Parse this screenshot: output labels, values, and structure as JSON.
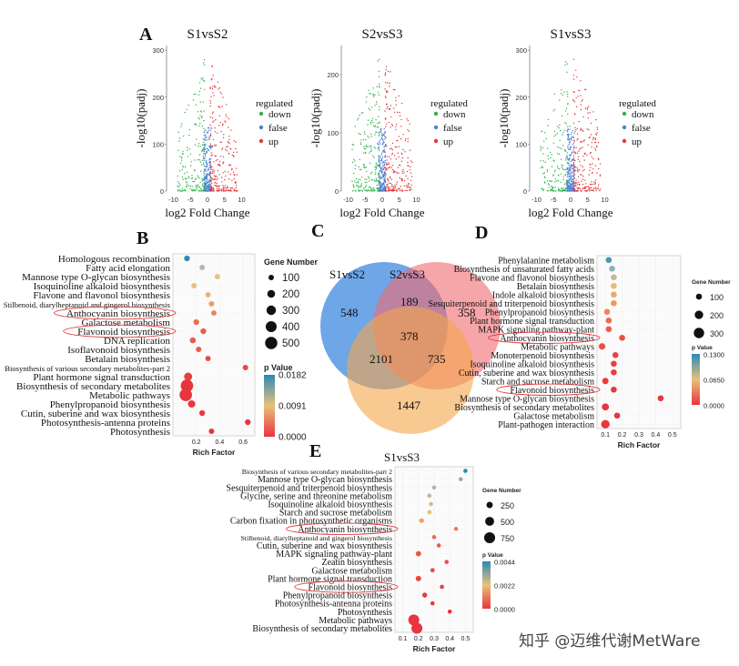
{
  "colors": {
    "down": "#2db34a",
    "false": "#4a7fd6",
    "up": "#e0393a",
    "venn_s1s2": "#4a90e2",
    "venn_s2s3": "#f06a6f",
    "venn_s1s3": "#f5a54a",
    "pval_low": "#e8353f",
    "pval_high": "#2b88b8"
  },
  "panel_a": {
    "letter": "A",
    "legend_title": "regulated",
    "legend_items": [
      "down",
      "false",
      "up"
    ],
    "xlabel": "log2 Fold Change",
    "ylabel": "-log10(padj)",
    "x_ticks": [
      "-10",
      "-5",
      "0",
      "5",
      "10"
    ],
    "plots": [
      {
        "title": "S1vsS2",
        "y_ticks": [
          "0",
          "100",
          "200",
          "300"
        ],
        "ymax": 310
      },
      {
        "title": "S2vsS3",
        "y_ticks": [
          "0",
          "100",
          "200"
        ],
        "ymax": 250
      },
      {
        "title": "S1vsS3",
        "y_ticks": [
          "0",
          "100",
          "200",
          "300"
        ],
        "ymax": 310
      }
    ]
  },
  "panel_c": {
    "letter": "C",
    "sets": [
      "S1vsS2",
      "S2vsS3",
      "S1vsS3"
    ],
    "regions": {
      "only_s1s2": "548",
      "s1s2_s2s3": "189",
      "only_s2s3": "358",
      "all": "378",
      "s1s2_s1s3": "2101",
      "s2s3_s1s3": "735",
      "only_s1s3": "1447"
    }
  },
  "chart_data": [
    {
      "type": "scatter",
      "panel": "B",
      "letter": "B",
      "xlabel": "Rich Factor",
      "x_ticks": [
        "0.2",
        "0.4",
        "0.6"
      ],
      "xlim": [
        0,
        0.7
      ],
      "size_legend_title": "Gene Number",
      "size_legend": [
        "100",
        "200",
        "300",
        "400",
        "500"
      ],
      "color_legend_title": "p Value",
      "color_legend": [
        "0.0182",
        "0.0091",
        "0.0000"
      ],
      "highlighted": [
        "Anthocyanin biosynthesis",
        "Flavonoid biosynthesis"
      ],
      "pathways": [
        {
          "name": "Homologous recombination",
          "x": 0.12,
          "size": 110,
          "p": 0.018
        },
        {
          "name": "Fatty acid elongation",
          "x": 0.25,
          "size": 100,
          "p": 0.012
        },
        {
          "name": "Mannose type O-glycan biosynthesis",
          "x": 0.38,
          "size": 95,
          "p": 0.009
        },
        {
          "name": "Isoquinoline alkaloid biosynthesis",
          "x": 0.18,
          "size": 100,
          "p": 0.009
        },
        {
          "name": "Flavone and flavonol biosynthesis",
          "x": 0.3,
          "size": 95,
          "p": 0.008
        },
        {
          "name": "Stilbenoid, diarylheptanoid and gingerol biosynthesis",
          "x": 0.33,
          "size": 100,
          "p": 0.006
        },
        {
          "name": "Anthocyanin biosynthesis",
          "x": 0.35,
          "size": 95,
          "p": 0.004
        },
        {
          "name": "Galactose metabolism",
          "x": 0.2,
          "size": 110,
          "p": 0.003
        },
        {
          "name": "Flavonoid biosynthesis",
          "x": 0.26,
          "size": 110,
          "p": 0.002
        },
        {
          "name": "DNA replication",
          "x": 0.17,
          "size": 120,
          "p": 0.002
        },
        {
          "name": "Isoflavonoid biosynthesis",
          "x": 0.22,
          "size": 100,
          "p": 0.002
        },
        {
          "name": "Betalain biosynthesis",
          "x": 0.3,
          "size": 95,
          "p": 0.001
        },
        {
          "name": "Biosynthesis of various secondary metabolites-part 2",
          "x": 0.62,
          "size": 100,
          "p": 0.001
        },
        {
          "name": "Plant hormone signal transduction",
          "x": 0.13,
          "size": 220,
          "p": 0.0005
        },
        {
          "name": "Biosynthesis of secondary metabolites",
          "x": 0.12,
          "size": 520,
          "p": 0.0
        },
        {
          "name": "Metabolic pathways",
          "x": 0.11,
          "size": 520,
          "p": 0.0
        },
        {
          "name": "Phenylpropanoid biosynthesis",
          "x": 0.16,
          "size": 180,
          "p": 0.0
        },
        {
          "name": "Cutin, suberine and wax biosynthesis",
          "x": 0.25,
          "size": 110,
          "p": 0.0
        },
        {
          "name": "Photosynthesis-antenna proteins",
          "x": 0.64,
          "size": 110,
          "p": 0.0
        },
        {
          "name": "Photosynthesis",
          "x": 0.33,
          "size": 100,
          "p": 0.0
        }
      ]
    },
    {
      "type": "scatter",
      "panel": "D",
      "letter": "D",
      "xlabel": "Rich Factor",
      "x_ticks": [
        "0.1",
        "0.2",
        "0.3",
        "0.4",
        "0.5"
      ],
      "xlim": [
        0.05,
        0.55
      ],
      "size_legend_title": "Gene Number",
      "size_legend": [
        "100",
        "200",
        "300"
      ],
      "color_legend_title": "p Value",
      "color_legend": [
        "0.1300",
        "0.0650",
        "0.0000"
      ],
      "highlighted": [
        "Anthocyanin biosynthesis",
        "Flavonoid biosynthesis"
      ],
      "pathways": [
        {
          "name": "Phenylalanine metabolism",
          "x": 0.12,
          "size": 100,
          "p": 0.12
        },
        {
          "name": "Biosynthesis of unsaturated fatty acids",
          "x": 0.14,
          "size": 100,
          "p": 0.1
        },
        {
          "name": "Flavone and flavonol biosynthesis",
          "x": 0.15,
          "size": 100,
          "p": 0.08
        },
        {
          "name": "Betalain biosynthesis",
          "x": 0.15,
          "size": 100,
          "p": 0.06
        },
        {
          "name": "Indole alkaloid biosynthesis",
          "x": 0.15,
          "size": 100,
          "p": 0.05
        },
        {
          "name": "Sesquiterpenoid and triterpenoid biosynthesis",
          "x": 0.15,
          "size": 100,
          "p": 0.04
        },
        {
          "name": "Phenylpropanoid biosynthesis",
          "x": 0.11,
          "size": 100,
          "p": 0.03
        },
        {
          "name": "Plant hormone signal transduction",
          "x": 0.12,
          "size": 100,
          "p": 0.02
        },
        {
          "name": "MAPK signaling pathway-plant",
          "x": 0.12,
          "size": 100,
          "p": 0.015
        },
        {
          "name": "Anthocyanin biosynthesis",
          "x": 0.2,
          "size": 100,
          "p": 0.01
        },
        {
          "name": "Metabolic pathways",
          "x": 0.08,
          "size": 120,
          "p": 0.01
        },
        {
          "name": "Monoterpenoid biosynthesis",
          "x": 0.16,
          "size": 100,
          "p": 0.005
        },
        {
          "name": "Isoquinoline alkaloid biosynthesis",
          "x": 0.15,
          "size": 100,
          "p": 0.004
        },
        {
          "name": "Cutin, suberine and wax biosynthesis",
          "x": 0.15,
          "size": 100,
          "p": 0.003
        },
        {
          "name": "Starch and sucrose metabolism",
          "x": 0.1,
          "size": 110,
          "p": 0.002
        },
        {
          "name": "Flavonoid biosynthesis",
          "x": 0.15,
          "size": 100,
          "p": 0.001
        },
        {
          "name": "Mannose type O-glycan biosynthesis",
          "x": 0.43,
          "size": 100,
          "p": 0.001
        },
        {
          "name": "Biosynthesis of secondary metabolites",
          "x": 0.1,
          "size": 140,
          "p": 0.0005
        },
        {
          "name": "Galactose metabolism",
          "x": 0.17,
          "size": 100,
          "p": 0.0
        },
        {
          "name": "Plant-pathogen interaction",
          "x": 0.1,
          "size": 200,
          "p": 0.0
        }
      ]
    },
    {
      "type": "scatter",
      "panel": "E",
      "letter": "E",
      "xlabel": "Rich Factor",
      "x_ticks": [
        "0.1",
        "0.2",
        "0.3",
        "0.4",
        "0.5"
      ],
      "xlim": [
        0.05,
        0.55
      ],
      "size_legend_title": "Gene Number",
      "size_legend": [
        "250",
        "500",
        "750"
      ],
      "color_legend_title": "p Value",
      "color_legend": [
        "0.0044",
        "0.0022",
        "0.0000"
      ],
      "highlighted": [
        "Anthocyanin biosynthesis",
        "Flavonoid biosynthesis"
      ],
      "pathways": [
        {
          "name": "Biosynthesis of various secondary metabolites-part 2",
          "x": 0.5,
          "size": 110,
          "p": 0.0044
        },
        {
          "name": "Mannose type O-glycan biosynthesis",
          "x": 0.47,
          "size": 100,
          "p": 0.0035
        },
        {
          "name": "Sesquiterpenoid and triterpenoid biosynthesis",
          "x": 0.3,
          "size": 110,
          "p": 0.003
        },
        {
          "name": "Glycine, serine and threonine metabolism",
          "x": 0.27,
          "size": 110,
          "p": 0.0028
        },
        {
          "name": "Isoquinoline alkaloid biosynthesis",
          "x": 0.28,
          "size": 110,
          "p": 0.0025
        },
        {
          "name": "Starch and sucrose metabolism",
          "x": 0.27,
          "size": 120,
          "p": 0.0022
        },
        {
          "name": "Carbon fixation in photosynthetic organisms",
          "x": 0.22,
          "size": 140,
          "p": 0.0015
        },
        {
          "name": "Anthocyanin biosynthesis",
          "x": 0.44,
          "size": 100,
          "p": 0.0008
        },
        {
          "name": "Stilbenoid, diarylheptanoid and gingerol biosynthesis",
          "x": 0.3,
          "size": 110,
          "p": 0.0007
        },
        {
          "name": "Cutin, suberine and wax biosynthesis",
          "x": 0.33,
          "size": 110,
          "p": 0.0005
        },
        {
          "name": "MAPK signaling pathway-plant",
          "x": 0.2,
          "size": 180,
          "p": 0.0004
        },
        {
          "name": "Zeatin biosynthesis",
          "x": 0.38,
          "size": 110,
          "p": 0.0003
        },
        {
          "name": "Galactose metabolism",
          "x": 0.29,
          "size": 120,
          "p": 0.0003
        },
        {
          "name": "Plant hormone signal transduction",
          "x": 0.2,
          "size": 190,
          "p": 0.0002
        },
        {
          "name": "Flavonoid biosynthesis",
          "x": 0.35,
          "size": 110,
          "p": 0.0001
        },
        {
          "name": "Phenylpropanoid biosynthesis",
          "x": 0.24,
          "size": 160,
          "p": 0.0001
        },
        {
          "name": "Photosynthesis-antenna proteins",
          "x": 0.29,
          "size": 110,
          "p": 0.0
        },
        {
          "name": "Photosynthesis",
          "x": 0.4,
          "size": 110,
          "p": 0.0
        },
        {
          "name": "Metabolic pathways",
          "x": 0.17,
          "size": 750,
          "p": 0.0
        },
        {
          "name": "Biosynthesis of secondary metabolites",
          "x": 0.19,
          "size": 750,
          "p": 0.0
        }
      ]
    }
  ],
  "watermark": "知乎 @迈维代谢MetWare"
}
